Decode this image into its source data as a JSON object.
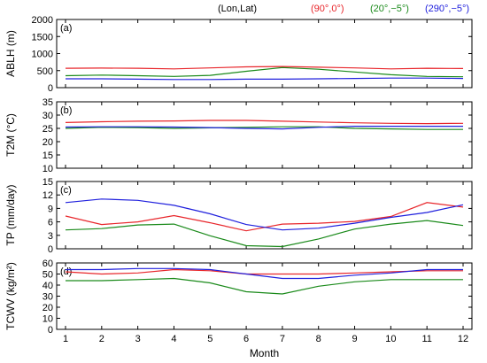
{
  "header": {
    "coord_label": "(Lon,Lat)",
    "entries": [
      {
        "text": "(90°,0°)",
        "color": "#e8262b"
      },
      {
        "text": "(20°,−5°)",
        "color": "#1a8a1a"
      },
      {
        "text": "(290°,−5°)",
        "color": "#2020dd"
      }
    ]
  },
  "chart_data": [
    {
      "type": "line",
      "panel": "(a)",
      "ylabel": "ABLH (m)",
      "ylim": [
        0,
        2000
      ],
      "yticks": [
        0,
        500,
        1000,
        1500,
        2000
      ],
      "x": [
        1,
        2,
        3,
        4,
        5,
        6,
        7,
        8,
        9,
        10,
        11,
        12
      ],
      "series": [
        {
          "name": "(90°,0°)",
          "color": "#e8262b",
          "values": [
            570,
            575,
            570,
            550,
            580,
            610,
            620,
            600,
            580,
            550,
            570,
            560
          ]
        },
        {
          "name": "(20°,−5°)",
          "color": "#1a8a1a",
          "values": [
            350,
            370,
            350,
            330,
            360,
            480,
            590,
            540,
            460,
            380,
            330,
            320
          ]
        },
        {
          "name": "(290°,−5°)",
          "color": "#2020dd",
          "values": [
            260,
            260,
            250,
            240,
            240,
            250,
            250,
            260,
            270,
            280,
            280,
            270
          ]
        }
      ]
    },
    {
      "type": "line",
      "panel": "(b)",
      "ylabel": "T2M (°C)",
      "ylim": [
        10,
        35
      ],
      "yticks": [
        10,
        15,
        20,
        25,
        30,
        35
      ],
      "x": [
        1,
        2,
        3,
        4,
        5,
        6,
        7,
        8,
        9,
        10,
        11,
        12
      ],
      "series": [
        {
          "name": "(90°,0°)",
          "color": "#e8262b",
          "values": [
            27.2,
            27.5,
            27.7,
            27.8,
            28.0,
            28.0,
            27.7,
            27.4,
            27.1,
            26.9,
            26.8,
            26.9
          ]
        },
        {
          "name": "(20°,−5°)",
          "color": "#1a8a1a",
          "values": [
            25.0,
            25.4,
            25.3,
            25.0,
            25.2,
            25.4,
            25.6,
            25.6,
            25.0,
            24.8,
            24.6,
            24.6
          ]
        },
        {
          "name": "(290°,−5°)",
          "color": "#2020dd",
          "values": [
            25.5,
            25.6,
            25.6,
            25.5,
            25.3,
            25.0,
            24.8,
            25.4,
            25.8,
            25.8,
            25.8,
            25.8
          ]
        }
      ]
    },
    {
      "type": "line",
      "panel": "(c)",
      "ylabel": "TP (mm/day)",
      "ylim": [
        0,
        15
      ],
      "yticks": [
        0,
        3,
        6,
        9,
        12,
        15
      ],
      "x": [
        1,
        2,
        3,
        4,
        5,
        6,
        7,
        8,
        9,
        10,
        11,
        12
      ],
      "series": [
        {
          "name": "(90°,0°)",
          "color": "#e8262b",
          "values": [
            7.3,
            5.4,
            6.0,
            7.4,
            5.8,
            4.0,
            5.5,
            5.7,
            6.1,
            7.2,
            10.3,
            9.3
          ]
        },
        {
          "name": "(20°,−5°)",
          "color": "#1a8a1a",
          "values": [
            4.2,
            4.5,
            5.3,
            5.5,
            2.9,
            0.7,
            0.5,
            2.2,
            4.4,
            5.5,
            6.3,
            5.2
          ]
        },
        {
          "name": "(290°,−5°)",
          "color": "#2020dd",
          "values": [
            10.3,
            11.1,
            10.8,
            9.7,
            7.8,
            5.4,
            4.2,
            4.6,
            5.7,
            7.0,
            8.1,
            9.8
          ]
        }
      ]
    },
    {
      "type": "line",
      "panel": "(d)",
      "ylabel": "TCWV (kg/m²)",
      "ylim": [
        0,
        60
      ],
      "yticks": [
        0,
        10,
        20,
        30,
        40,
        50,
        60
      ],
      "xlabel": "Month",
      "xticks": [
        1,
        2,
        3,
        4,
        5,
        6,
        7,
        8,
        9,
        10,
        11,
        12
      ],
      "x": [
        1,
        2,
        3,
        4,
        5,
        6,
        7,
        8,
        9,
        10,
        11,
        12
      ],
      "series": [
        {
          "name": "(90°,0°)",
          "color": "#e8262b",
          "values": [
            52,
            50,
            51,
            54,
            53,
            50,
            50,
            50,
            51,
            52,
            53,
            53
          ]
        },
        {
          "name": "(20°,−5°)",
          "color": "#1a8a1a",
          "values": [
            44,
            44,
            45,
            46,
            42,
            34,
            32,
            39,
            43,
            45,
            45,
            45
          ]
        },
        {
          "name": "(290°,−5°)",
          "color": "#2020dd",
          "values": [
            54,
            54,
            55,
            55,
            54,
            50,
            46,
            46,
            49,
            51,
            54,
            54
          ]
        }
      ]
    }
  ]
}
